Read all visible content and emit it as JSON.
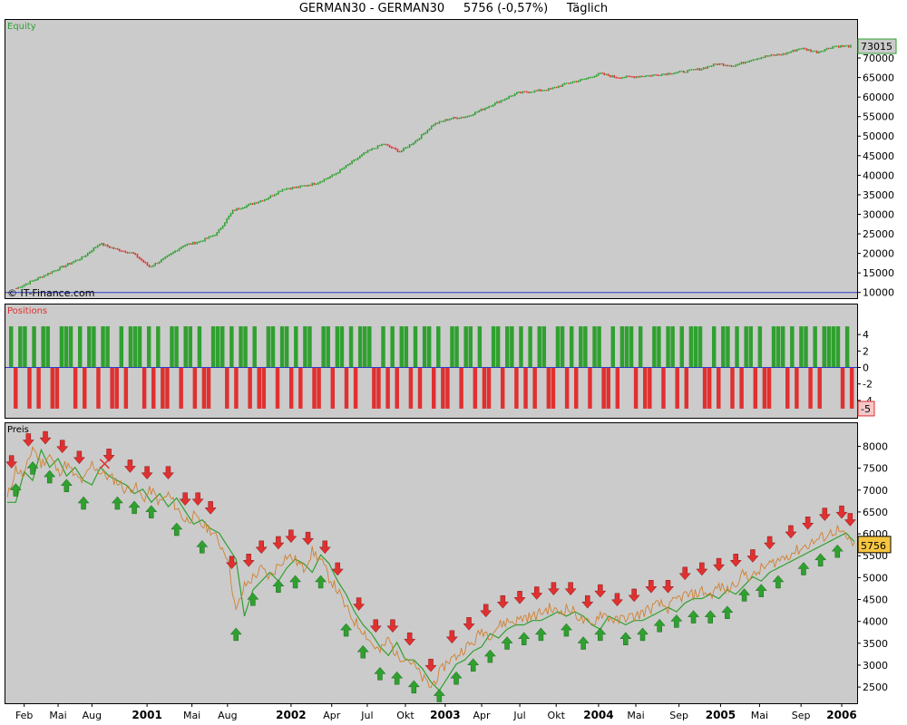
{
  "header": {
    "title": "GERMAN30 - GERMAN30     5756 (-0,57%)     Täglich"
  },
  "colors": {
    "panel_bg": "#cbcbcb",
    "up": "#30a030",
    "down": "#e03030",
    "price_line": "#d08030",
    "baseline": "#2a3acc"
  },
  "chart_data": [
    {
      "type": "line",
      "panel": "equity",
      "label": "Equity",
      "watermark": "© IT-Finance.com",
      "ylim": [
        9000,
        76500
      ],
      "yticks": [
        "10000",
        "15000",
        "20000",
        "25000",
        "30000",
        "35000",
        "40000",
        "45000",
        "50000",
        "55000",
        "60000",
        "65000",
        "70000"
      ],
      "last_value": "73015",
      "baseline": 10000,
      "x": [
        0,
        0.02,
        0.04,
        0.06,
        0.08,
        0.1,
        0.12,
        0.14,
        0.16,
        0.18,
        0.2,
        0.22,
        0.24,
        0.26,
        0.28,
        0.3,
        0.32,
        0.34,
        0.36,
        0.38,
        0.4,
        0.42,
        0.44,
        0.46,
        0.48,
        0.5,
        0.52,
        0.54,
        0.56,
        0.58,
        0.6,
        0.62,
        0.64,
        0.66,
        0.68,
        0.7,
        0.72,
        0.74,
        0.76,
        0.78,
        0.8,
        0.82,
        0.84,
        0.86,
        0.88,
        0.9,
        0.92,
        0.94,
        0.96,
        0.98,
        1.0
      ],
      "y": [
        11000,
        13000,
        15000,
        17000,
        19000,
        22500,
        21000,
        20000,
        16500,
        19000,
        22000,
        23000,
        25000,
        31000,
        32500,
        34000,
        36500,
        37000,
        38000,
        40000,
        43000,
        46000,
        48000,
        46000,
        49000,
        53000,
        54500,
        55000,
        57000,
        59000,
        61000,
        61500,
        62000,
        63500,
        64500,
        66000,
        65000,
        65200,
        65500,
        66000,
        66500,
        67200,
        68500,
        68000,
        69500,
        70500,
        71000,
        72500,
        71500,
        73000,
        73015
      ]
    },
    {
      "type": "bar",
      "panel": "positions",
      "label": "Positions",
      "ylim": [
        -6,
        6
      ],
      "yticks": [
        "4",
        "2",
        "0",
        "-2",
        "-4"
      ],
      "last_value": "-5",
      "values": [
        5,
        -5,
        5,
        5,
        -5,
        5,
        -5,
        5,
        5,
        -5,
        -5,
        5,
        5,
        5,
        -5,
        5,
        -5,
        5,
        5,
        -5,
        5,
        5,
        -5,
        -5,
        5,
        -5,
        5,
        5,
        5,
        -5,
        5,
        -5,
        5,
        -5,
        -5,
        5,
        5,
        -5,
        5,
        5,
        -5,
        5,
        -5,
        -5,
        5,
        5,
        5,
        -5,
        5,
        -5,
        5,
        5,
        -5,
        5,
        -5,
        -5,
        5,
        5,
        -5,
        5,
        5,
        -5,
        5,
        -5,
        5,
        5,
        -5,
        -5,
        5,
        5,
        -5,
        5,
        5,
        -5,
        5,
        -5,
        5,
        5,
        5,
        -5,
        -5,
        5,
        -5,
        5,
        -5,
        5,
        5,
        -5,
        5,
        -5,
        5,
        5,
        -5,
        5,
        -5,
        -5,
        5,
        5,
        -5,
        5,
        5,
        -5,
        5,
        -5,
        -5,
        5,
        5,
        -5,
        5,
        5,
        -5,
        5,
        -5,
        5,
        -5,
        5,
        5,
        -5,
        -5,
        5,
        5,
        -5,
        5,
        -5,
        5,
        5,
        -5,
        5,
        5,
        -5,
        -5,
        5,
        -5,
        5,
        5,
        5,
        -5,
        5,
        -5,
        -5,
        5,
        5,
        -5,
        5,
        5,
        -5,
        5,
        -5,
        5,
        5,
        5,
        -5,
        -5,
        5,
        -5,
        5,
        5,
        -5,
        5,
        -5,
        5,
        5,
        -5,
        5,
        -5,
        -5,
        5,
        5,
        5,
        -5,
        5,
        -5,
        5,
        5,
        -5,
        5,
        -5,
        5,
        5,
        5,
        5,
        -5,
        5,
        -5
      ]
    },
    {
      "type": "line",
      "panel": "price",
      "label": "Preis",
      "ylim": [
        2150,
        8300
      ],
      "yticks": [
        "8000",
        "7500",
        "7000",
        "6500",
        "6000",
        "5500",
        "5000",
        "4500",
        "4000",
        "3500",
        "3000",
        "2500"
      ],
      "last_value": "5756",
      "x_labels": [
        {
          "text": "Feb",
          "pos": 0.02,
          "bold": false
        },
        {
          "text": "Mai",
          "pos": 0.06,
          "bold": false
        },
        {
          "text": "Aug",
          "pos": 0.1,
          "bold": false
        },
        {
          "text": "2001",
          "pos": 0.165,
          "bold": true
        },
        {
          "text": "Mai",
          "pos": 0.218,
          "bold": false
        },
        {
          "text": "Aug",
          "pos": 0.26,
          "bold": false
        },
        {
          "text": "2002",
          "pos": 0.335,
          "bold": true
        },
        {
          "text": "Apr",
          "pos": 0.383,
          "bold": false
        },
        {
          "text": "Jul",
          "pos": 0.425,
          "bold": false
        },
        {
          "text": "Okt",
          "pos": 0.47,
          "bold": false
        },
        {
          "text": "2003",
          "pos": 0.517,
          "bold": true
        },
        {
          "text": "Apr",
          "pos": 0.56,
          "bold": false
        },
        {
          "text": "Jul",
          "pos": 0.605,
          "bold": false
        },
        {
          "text": "Okt",
          "pos": 0.648,
          "bold": false
        },
        {
          "text": "2004",
          "pos": 0.698,
          "bold": true
        },
        {
          "text": "Mai",
          "pos": 0.742,
          "bold": false
        },
        {
          "text": "Sep",
          "pos": 0.793,
          "bold": false
        },
        {
          "text": "2005",
          "pos": 0.842,
          "bold": true
        },
        {
          "text": "Mai",
          "pos": 0.888,
          "bold": false
        },
        {
          "text": "Sep",
          "pos": 0.937,
          "bold": false
        },
        {
          "text": "2006",
          "pos": 0.985,
          "bold": true
        }
      ],
      "x": [
        0,
        0.01,
        0.02,
        0.03,
        0.04,
        0.05,
        0.06,
        0.07,
        0.08,
        0.09,
        0.1,
        0.11,
        0.12,
        0.13,
        0.14,
        0.15,
        0.16,
        0.17,
        0.18,
        0.19,
        0.2,
        0.21,
        0.22,
        0.23,
        0.24,
        0.25,
        0.26,
        0.27,
        0.28,
        0.29,
        0.3,
        0.31,
        0.32,
        0.33,
        0.34,
        0.35,
        0.36,
        0.37,
        0.38,
        0.39,
        0.4,
        0.41,
        0.42,
        0.43,
        0.44,
        0.45,
        0.46,
        0.47,
        0.48,
        0.49,
        0.5,
        0.51,
        0.52,
        0.53,
        0.54,
        0.55,
        0.56,
        0.57,
        0.58,
        0.59,
        0.6,
        0.61,
        0.62,
        0.63,
        0.64,
        0.65,
        0.66,
        0.67,
        0.68,
        0.69,
        0.7,
        0.71,
        0.72,
        0.73,
        0.74,
        0.75,
        0.76,
        0.77,
        0.78,
        0.79,
        0.8,
        0.81,
        0.82,
        0.83,
        0.84,
        0.85,
        0.86,
        0.87,
        0.88,
        0.89,
        0.9,
        0.91,
        0.92,
        0.93,
        0.94,
        0.95,
        0.96,
        0.97,
        0.98,
        0.99,
        1.0
      ],
      "y": [
        6800,
        7500,
        7300,
        8000,
        7600,
        7800,
        7400,
        7600,
        7300,
        7200,
        7600,
        7400,
        7300,
        7200,
        7000,
        7100,
        6800,
        7000,
        6700,
        6900,
        6600,
        6300,
        6400,
        6200,
        6100,
        5800,
        5500,
        4200,
        4800,
        5000,
        5200,
        5000,
        5300,
        5500,
        5400,
        5200,
        5600,
        5400,
        5000,
        4700,
        4300,
        4000,
        3800,
        3500,
        3300,
        3600,
        3200,
        3200,
        3000,
        2700,
        2500,
        2800,
        3100,
        3200,
        3400,
        3500,
        3800,
        3700,
        3900,
        4000,
        4000,
        4100,
        4100,
        4200,
        4300,
        4200,
        4300,
        4200,
        4000,
        3900,
        4200,
        4100,
        4000,
        4100,
        4100,
        4200,
        4300,
        4400,
        4300,
        4500,
        4600,
        4600,
        4700,
        4600,
        4800,
        4700,
        4900,
        5100,
        5000,
        5200,
        5300,
        5400,
        5500,
        5600,
        5700,
        5800,
        5900,
        6000,
        6100,
        5900,
        5756
      ],
      "long_signals": [
        0.01,
        0.03,
        0.05,
        0.07,
        0.09,
        0.13,
        0.15,
        0.17,
        0.2,
        0.23,
        0.27,
        0.29,
        0.32,
        0.34,
        0.37,
        0.4,
        0.42,
        0.44,
        0.46,
        0.48,
        0.51,
        0.53,
        0.55,
        0.57,
        0.59,
        0.61,
        0.63,
        0.66,
        0.68,
        0.7,
        0.73,
        0.75,
        0.77,
        0.79,
        0.81,
        0.83,
        0.85,
        0.87,
        0.89,
        0.91,
        0.94,
        0.96,
        0.98
      ],
      "short_signals": [
        0.005,
        0.025,
        0.045,
        0.065,
        0.085,
        0.12,
        0.145,
        0.165,
        0.19,
        0.21,
        0.225,
        0.24,
        0.265,
        0.285,
        0.3,
        0.32,
        0.335,
        0.355,
        0.375,
        0.39,
        0.415,
        0.435,
        0.455,
        0.475,
        0.5,
        0.525,
        0.545,
        0.565,
        0.585,
        0.605,
        0.625,
        0.645,
        0.665,
        0.685,
        0.7,
        0.72,
        0.74,
        0.76,
        0.78,
        0.8,
        0.82,
        0.84,
        0.86,
        0.88,
        0.9,
        0.925,
        0.945,
        0.965,
        0.985,
        0.995
      ],
      "exit_marker": 0.115
    }
  ]
}
